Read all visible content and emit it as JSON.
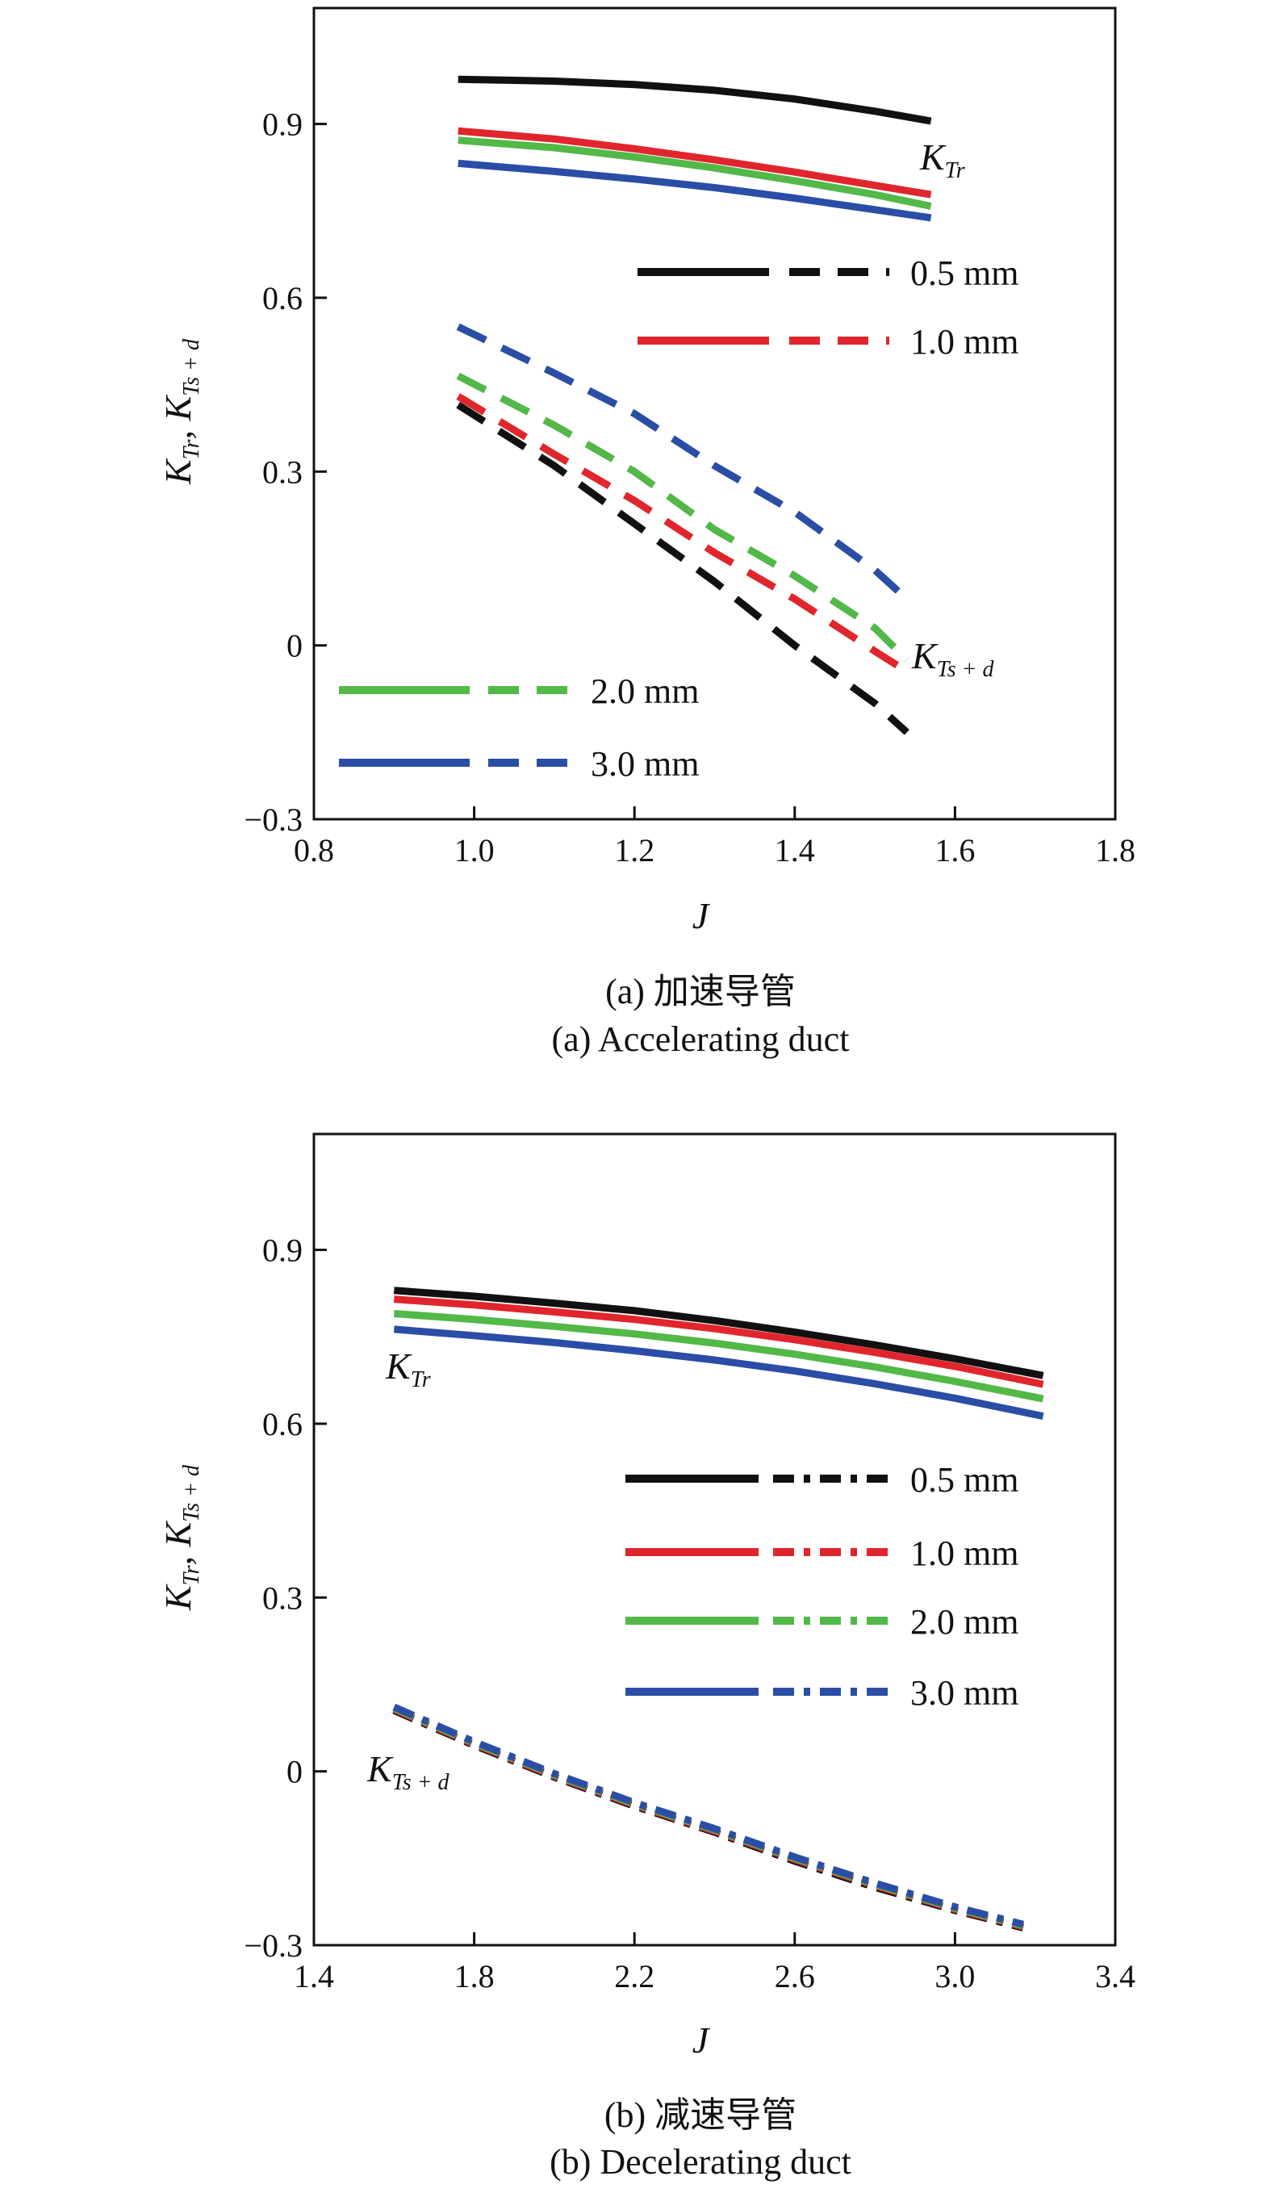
{
  "chart_data": [
    {
      "type": "line",
      "caption_cn": "(a) 加速导管",
      "caption_en": "(a) Accelerating duct",
      "xlabel": "J",
      "ylabel": "K_Tr, K_Ts+d",
      "xlim": [
        0.8,
        1.8
      ],
      "ylim": [
        -0.3,
        1.1
      ],
      "xticks": [
        "0.8",
        "1.0",
        "1.2",
        "1.4",
        "1.6",
        "1.8"
      ],
      "yticks": [
        "−0.3",
        "0",
        "0.3",
        "0.6",
        "0.9"
      ],
      "curve_labels": {
        "kt_rotor": "K_Tr",
        "kt_sd": "K_Ts+d"
      },
      "legend": [
        {
          "name": "0.5 mm",
          "color": "#111111"
        },
        {
          "name": "1.0 mm",
          "color": "#e0262c"
        },
        {
          "name": "2.0 mm",
          "color": "#52b848"
        },
        {
          "name": "3.0 mm",
          "color": "#2a4ea6"
        }
      ],
      "series": [
        {
          "name": "0.5 mm",
          "kind": "K_Tr",
          "color": "#111111",
          "dash": "solid",
          "x": [
            0.98,
            1.1,
            1.2,
            1.3,
            1.4,
            1.5,
            1.57
          ],
          "y": [
            0.977,
            0.974,
            0.968,
            0.958,
            0.943,
            0.922,
            0.905
          ]
        },
        {
          "name": "1.0 mm",
          "kind": "K_Tr",
          "color": "#e0262c",
          "dash": "solid",
          "x": [
            0.98,
            1.1,
            1.2,
            1.3,
            1.4,
            1.5,
            1.57
          ],
          "y": [
            0.888,
            0.874,
            0.857,
            0.838,
            0.817,
            0.794,
            0.778
          ]
        },
        {
          "name": "2.0 mm",
          "kind": "K_Tr",
          "color": "#52b848",
          "dash": "solid",
          "x": [
            0.98,
            1.1,
            1.2,
            1.3,
            1.4,
            1.5,
            1.57
          ],
          "y": [
            0.872,
            0.859,
            0.843,
            0.824,
            0.802,
            0.778,
            0.758
          ]
        },
        {
          "name": "3.0 mm",
          "kind": "K_Tr",
          "color": "#2a4ea6",
          "dash": "solid",
          "x": [
            0.98,
            1.1,
            1.2,
            1.3,
            1.4,
            1.5,
            1.57
          ],
          "y": [
            0.832,
            0.818,
            0.805,
            0.79,
            0.772,
            0.752,
            0.738
          ]
        },
        {
          "name": "0.5 mm",
          "kind": "K_Ts+d",
          "color": "#111111",
          "dash": "dash",
          "x": [
            0.98,
            1.1,
            1.2,
            1.3,
            1.4,
            1.5,
            1.54
          ],
          "y": [
            0.415,
            0.31,
            0.21,
            0.11,
            0.0,
            -0.1,
            -0.15
          ]
        },
        {
          "name": "1.0 mm",
          "kind": "K_Ts+d",
          "color": "#e0262c",
          "dash": "dash",
          "x": [
            0.98,
            1.1,
            1.2,
            1.3,
            1.4,
            1.5,
            1.54
          ],
          "y": [
            0.43,
            0.33,
            0.25,
            0.16,
            0.08,
            -0.01,
            -0.045
          ]
        },
        {
          "name": "2.0 mm",
          "kind": "K_Ts+d",
          "color": "#52b848",
          "dash": "dash",
          "x": [
            0.98,
            1.1,
            1.2,
            1.3,
            1.4,
            1.5,
            1.54
          ],
          "y": [
            0.465,
            0.38,
            0.3,
            0.2,
            0.12,
            0.03,
            -0.025
          ]
        },
        {
          "name": "3.0 mm",
          "kind": "K_Ts+d",
          "color": "#2a4ea6",
          "dash": "dash",
          "x": [
            0.98,
            1.1,
            1.2,
            1.3,
            1.4,
            1.5,
            1.54
          ],
          "y": [
            0.55,
            0.47,
            0.4,
            0.31,
            0.23,
            0.13,
            0.08
          ]
        }
      ]
    },
    {
      "type": "line",
      "caption_cn": "(b) 减速导管",
      "caption_en": "(b) Decelerating duct",
      "xlabel": "J",
      "ylabel": "K_Tr, K_Ts+d",
      "xlim": [
        1.4,
        3.4
      ],
      "ylim": [
        -0.3,
        1.1
      ],
      "xticks": [
        "1.4",
        "1.8",
        "2.2",
        "2.6",
        "3.0",
        "3.4"
      ],
      "yticks": [
        "−0.3",
        "0",
        "0.3",
        "0.6",
        "0.9"
      ],
      "curve_labels": {
        "kt_rotor": "K_Tr",
        "kt_sd": "K_Ts+d"
      },
      "legend": [
        {
          "name": "0.5 mm",
          "color": "#111111"
        },
        {
          "name": "1.0 mm",
          "color": "#e0262c"
        },
        {
          "name": "2.0 mm",
          "color": "#52b848"
        },
        {
          "name": "3.0 mm",
          "color": "#2a4ea6"
        }
      ],
      "series": [
        {
          "name": "0.5 mm",
          "kind": "K_Tr",
          "color": "#111111",
          "dash": "solid",
          "x": [
            1.6,
            1.8,
            2.0,
            2.2,
            2.4,
            2.6,
            2.8,
            3.0,
            3.22
          ],
          "y": [
            0.83,
            0.82,
            0.808,
            0.795,
            0.778,
            0.758,
            0.736,
            0.712,
            0.683
          ]
        },
        {
          "name": "1.0 mm",
          "kind": "K_Tr",
          "color": "#e0262c",
          "dash": "solid",
          "x": [
            1.6,
            1.8,
            2.0,
            2.2,
            2.4,
            2.6,
            2.8,
            3.0,
            3.22
          ],
          "y": [
            0.815,
            0.805,
            0.793,
            0.78,
            0.764,
            0.745,
            0.723,
            0.699,
            0.668
          ]
        },
        {
          "name": "2.0 mm",
          "kind": "K_Tr",
          "color": "#52b848",
          "dash": "solid",
          "x": [
            1.6,
            1.8,
            2.0,
            2.2,
            2.4,
            2.6,
            2.8,
            3.0,
            3.22
          ],
          "y": [
            0.79,
            0.78,
            0.768,
            0.755,
            0.739,
            0.72,
            0.698,
            0.673,
            0.643
          ]
        },
        {
          "name": "3.0 mm",
          "kind": "K_Tr",
          "color": "#2a4ea6",
          "dash": "solid",
          "x": [
            1.6,
            1.8,
            2.0,
            2.2,
            2.4,
            2.6,
            2.8,
            3.0,
            3.22
          ],
          "y": [
            0.763,
            0.752,
            0.74,
            0.726,
            0.71,
            0.691,
            0.669,
            0.644,
            0.613
          ]
        },
        {
          "name": "0.5 mm",
          "kind": "K_Ts+d",
          "color": "#111111",
          "dash": "dashdot",
          "x": [
            1.6,
            1.8,
            2.0,
            2.2,
            2.4,
            2.6,
            2.8,
            3.0,
            3.17
          ],
          "y": [
            0.105,
            0.045,
            -0.01,
            -0.06,
            -0.105,
            -0.155,
            -0.2,
            -0.24,
            -0.27
          ]
        },
        {
          "name": "1.0 mm",
          "kind": "K_Ts+d",
          "color": "#e0262c",
          "dash": "dashdot",
          "x": [
            1.6,
            1.8,
            2.0,
            2.2,
            2.4,
            2.6,
            2.8,
            3.0,
            3.17
          ],
          "y": [
            0.107,
            0.047,
            -0.008,
            -0.058,
            -0.103,
            -0.152,
            -0.197,
            -0.238,
            -0.268
          ]
        },
        {
          "name": "2.0 mm",
          "kind": "K_Ts+d",
          "color": "#52b848",
          "dash": "dashdot",
          "x": [
            1.6,
            1.8,
            2.0,
            2.2,
            2.4,
            2.6,
            2.8,
            3.0,
            3.17
          ],
          "y": [
            0.109,
            0.049,
            -0.006,
            -0.056,
            -0.101,
            -0.15,
            -0.195,
            -0.236,
            -0.266
          ]
        },
        {
          "name": "3.0 mm",
          "kind": "K_Ts+d",
          "color": "#2a4ea6",
          "dash": "dashdot",
          "x": [
            1.6,
            1.8,
            2.0,
            2.2,
            2.4,
            2.6,
            2.8,
            3.0,
            3.17
          ],
          "y": [
            0.111,
            0.051,
            -0.004,
            -0.054,
            -0.099,
            -0.148,
            -0.193,
            -0.234,
            -0.264
          ]
        }
      ]
    }
  ]
}
